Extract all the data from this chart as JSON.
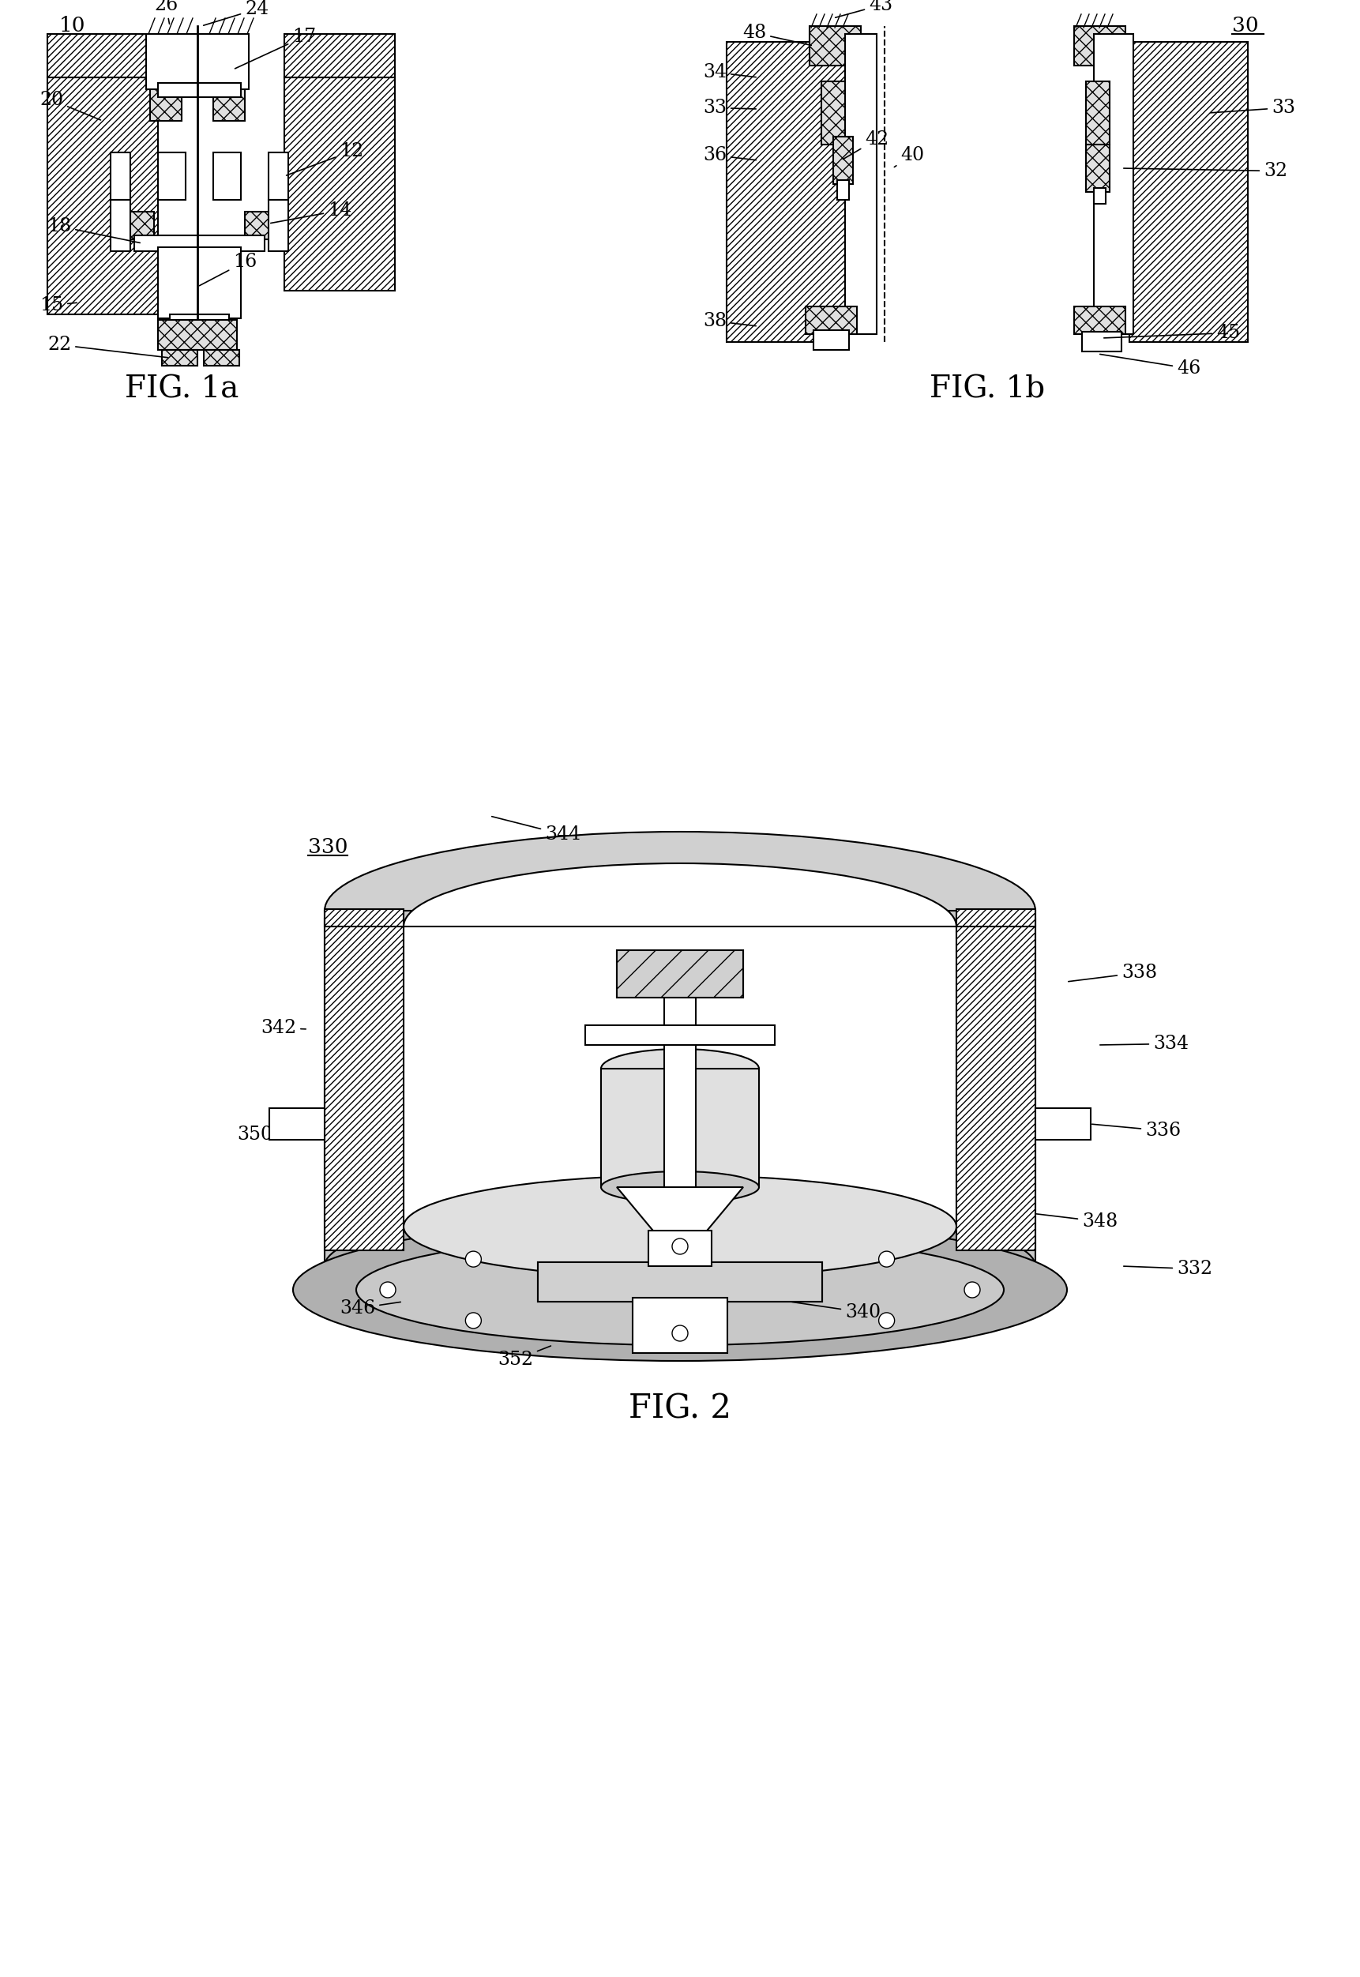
{
  "background_color": "#ffffff",
  "fig_width": 17.22,
  "fig_height": 25.03,
  "fig1a_label": "FIG. 1a",
  "fig1b_label": "FIG. 1b",
  "fig2_label": "FIG. 2",
  "fig1a_ref": "10",
  "fig1b_ref": "30",
  "fig2_ref": "330",
  "labels_1a": [
    "10",
    "12",
    "14",
    "15",
    "16",
    "17",
    "18",
    "20",
    "22",
    "24",
    "26"
  ],
  "labels_1b": [
    "30",
    "32",
    "33",
    "34",
    "36",
    "38",
    "40",
    "42",
    "43",
    "45",
    "46",
    "48"
  ],
  "labels_2": [
    "330",
    "332",
    "334",
    "336",
    "338",
    "340",
    "342",
    "344",
    "346",
    "348",
    "350",
    "352"
  ],
  "line_color": "#000000",
  "hatch_color": "#000000",
  "lw": 1.5
}
